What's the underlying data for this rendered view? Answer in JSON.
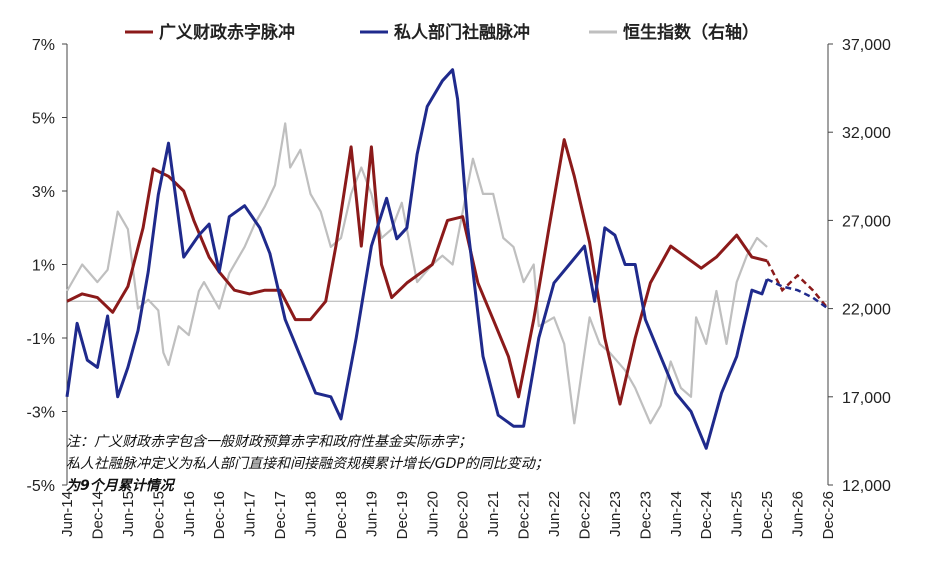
{
  "chart_data": {
    "type": "line",
    "title": "",
    "legend_position": "top",
    "grid": false,
    "y_left": {
      "ylim": [
        -5,
        7
      ],
      "ticks": [
        "7%",
        "5%",
        "3%",
        "1%",
        "-1%",
        "-3%",
        "-5%"
      ]
    },
    "y_right": {
      "ylim": [
        12000,
        37000
      ],
      "ticks": [
        "37,000",
        "32,000",
        "27,000",
        "22,000",
        "17,000",
        "12,000"
      ]
    },
    "x_ticks": [
      "Jun-14",
      "Dec-14",
      "Jun-15",
      "Dec-15",
      "Jun-16",
      "Dec-16",
      "Jun-17",
      "Dec-17",
      "Jun-18",
      "Dec-18",
      "Jun-19",
      "Dec-19",
      "Jun-20",
      "Dec-20",
      "Jun-21",
      "Dec-21",
      "Jun-22",
      "Dec-22",
      "Jun-23",
      "Dec-23",
      "Jun-24",
      "Dec-24",
      "Jun-25",
      "Dec-25",
      "Jun-26",
      "Dec-26"
    ],
    "series": [
      {
        "name": "广义财政赤字脉冲",
        "axis": "left",
        "color": "#8B1A1A",
        "forecast_from": "Dec-25",
        "points": [
          [
            "Jun-14",
            0.0
          ],
          [
            "Sep-14",
            0.2
          ],
          [
            "Dec-14",
            0.1
          ],
          [
            "Mar-15",
            -0.3
          ],
          [
            "Jun-15",
            0.4
          ],
          [
            "Sep-15",
            2.0
          ],
          [
            "Nov-15",
            3.6
          ],
          [
            "Feb-16",
            3.4
          ],
          [
            "May-16",
            3.0
          ],
          [
            "Jul-16",
            2.2
          ],
          [
            "Oct-16",
            1.2
          ],
          [
            "Dec-16",
            0.8
          ],
          [
            "Mar-17",
            0.3
          ],
          [
            "Jun-17",
            0.2
          ],
          [
            "Sep-17",
            0.3
          ],
          [
            "Dec-17",
            0.3
          ],
          [
            "Mar-18",
            -0.5
          ],
          [
            "Jun-18",
            -0.5
          ],
          [
            "Sep-18",
            0.0
          ],
          [
            "Nov-18",
            1.5
          ],
          [
            "Feb-19",
            4.2
          ],
          [
            "Apr-19",
            1.5
          ],
          [
            "Jun-19",
            4.2
          ],
          [
            "Aug-19",
            1.0
          ],
          [
            "Oct-19",
            0.1
          ],
          [
            "Jan-20",
            0.5
          ],
          [
            "Jun-20",
            1.0
          ],
          [
            "Sep-20",
            2.2
          ],
          [
            "Dec-20",
            2.3
          ],
          [
            "Mar-21",
            0.5
          ],
          [
            "Jun-21",
            -0.5
          ],
          [
            "Sep-21",
            -1.5
          ],
          [
            "Nov-21",
            -2.6
          ],
          [
            "Feb-22",
            -0.5
          ],
          [
            "May-22",
            2.0
          ],
          [
            "Aug-22",
            4.4
          ],
          [
            "Oct-22",
            3.4
          ],
          [
            "Jan-23",
            1.6
          ],
          [
            "Apr-23",
            -1.0
          ],
          [
            "Jul-23",
            -2.8
          ],
          [
            "Oct-23",
            -1.0
          ],
          [
            "Jan-24",
            0.5
          ],
          [
            "May-24",
            1.5
          ],
          [
            "Aug-24",
            1.2
          ],
          [
            "Nov-24",
            0.9
          ],
          [
            "Feb-25",
            1.2
          ],
          [
            "Jun-25",
            1.8
          ],
          [
            "Sep-25",
            1.2
          ],
          [
            "Dec-25",
            1.1
          ],
          [
            "Mar-26",
            0.3
          ],
          [
            "Jun-26",
            0.7
          ],
          [
            "Sep-26",
            0.3
          ],
          [
            "Dec-26",
            -0.2
          ]
        ]
      },
      {
        "name": "私人部门社融脉冲",
        "axis": "left",
        "color": "#1F2A8C",
        "forecast_from": "Dec-25",
        "points": [
          [
            "Jun-14",
            -2.6
          ],
          [
            "Aug-14",
            -0.6
          ],
          [
            "Oct-14",
            -1.6
          ],
          [
            "Dec-14",
            -1.8
          ],
          [
            "Feb-15",
            -0.4
          ],
          [
            "Apr-15",
            -2.6
          ],
          [
            "Jun-15",
            -1.8
          ],
          [
            "Aug-15",
            -0.8
          ],
          [
            "Oct-15",
            0.8
          ],
          [
            "Dec-15",
            2.9
          ],
          [
            "Feb-16",
            4.3
          ],
          [
            "May-16",
            1.2
          ],
          [
            "Aug-16",
            1.8
          ],
          [
            "Oct-16",
            2.1
          ],
          [
            "Dec-16",
            0.8
          ],
          [
            "Feb-17",
            2.3
          ],
          [
            "May-17",
            2.6
          ],
          [
            "Aug-17",
            2.0
          ],
          [
            "Oct-17",
            1.3
          ],
          [
            "Jan-18",
            -0.5
          ],
          [
            "Apr-18",
            -1.5
          ],
          [
            "Jul-18",
            -2.5
          ],
          [
            "Oct-18",
            -2.6
          ],
          [
            "Dec-18",
            -3.2
          ],
          [
            "Mar-19",
            -1.0
          ],
          [
            "Jun-19",
            1.5
          ],
          [
            "Sep-19",
            2.8
          ],
          [
            "Nov-19",
            1.7
          ],
          [
            "Jan-20",
            2.0
          ],
          [
            "Mar-20",
            4.0
          ],
          [
            "May-20",
            5.3
          ],
          [
            "Aug-20",
            6.0
          ],
          [
            "Oct-20",
            6.3
          ],
          [
            "Nov-20",
            5.5
          ],
          [
            "Jan-21",
            2.0
          ],
          [
            "Apr-21",
            -1.5
          ],
          [
            "Jul-21",
            -3.1
          ],
          [
            "Oct-21",
            -3.4
          ],
          [
            "Dec-21",
            -3.4
          ],
          [
            "Mar-22",
            -1.0
          ],
          [
            "Jun-22",
            0.5
          ],
          [
            "Sep-22",
            1.0
          ],
          [
            "Dec-22",
            1.5
          ],
          [
            "Feb-23",
            0.0
          ],
          [
            "Apr-23",
            2.0
          ],
          [
            "Jun-23",
            1.8
          ],
          [
            "Aug-23",
            1.0
          ],
          [
            "Oct-23",
            1.0
          ],
          [
            "Dec-23",
            -0.5
          ],
          [
            "Mar-24",
            -1.5
          ],
          [
            "Jun-24",
            -2.5
          ],
          [
            "Sep-24",
            -3.0
          ],
          [
            "Dec-24",
            -4.0
          ],
          [
            "Mar-25",
            -2.5
          ],
          [
            "Jun-25",
            -1.5
          ],
          [
            "Sep-25",
            0.3
          ],
          [
            "Nov-25",
            0.2
          ],
          [
            "Dec-25",
            0.6
          ],
          [
            "Mar-26",
            0.4
          ],
          [
            "Jun-26",
            0.3
          ],
          [
            "Sep-26",
            0.1
          ],
          [
            "Dec-26",
            -0.2
          ]
        ]
      },
      {
        "name": "恒生指数（右轴）",
        "axis": "right",
        "color": "#BFBFBF",
        "points": [
          [
            "Jun-14",
            23000
          ],
          [
            "Sep-14",
            24500
          ],
          [
            "Dec-14",
            23500
          ],
          [
            "Feb-15",
            24200
          ],
          [
            "Apr-15",
            27500
          ],
          [
            "Jun-15",
            26500
          ],
          [
            "Aug-15",
            22000
          ],
          [
            "Oct-15",
            22500
          ],
          [
            "Dec-15",
            21900
          ],
          [
            "Jan-16",
            19500
          ],
          [
            "Feb-16",
            18800
          ],
          [
            "Apr-16",
            21000
          ],
          [
            "Jun-16",
            20500
          ],
          [
            "Aug-16",
            23000
          ],
          [
            "Sep-16",
            23500
          ],
          [
            "Dec-16",
            22000
          ],
          [
            "Feb-17",
            24000
          ],
          [
            "May-17",
            25500
          ],
          [
            "Jul-17",
            26800
          ],
          [
            "Sep-17",
            27800
          ],
          [
            "Nov-17",
            29000
          ],
          [
            "Jan-18",
            32500
          ],
          [
            "Feb-18",
            30000
          ],
          [
            "Apr-18",
            31000
          ],
          [
            "Jun-18",
            28500
          ],
          [
            "Aug-18",
            27500
          ],
          [
            "Oct-18",
            25500
          ],
          [
            "Dec-18",
            26000
          ],
          [
            "Feb-19",
            28500
          ],
          [
            "Apr-19",
            30000
          ],
          [
            "Jun-19",
            28500
          ],
          [
            "Aug-19",
            26000
          ],
          [
            "Oct-19",
            26500
          ],
          [
            "Dec-19",
            28000
          ],
          [
            "Mar-20",
            23500
          ],
          [
            "Jun-20",
            24500
          ],
          [
            "Aug-20",
            25000
          ],
          [
            "Oct-20",
            24500
          ],
          [
            "Jan-21",
            29000
          ],
          [
            "Feb-21",
            30500
          ],
          [
            "Apr-21",
            28500
          ],
          [
            "Jun-21",
            28500
          ],
          [
            "Aug-21",
            26000
          ],
          [
            "Oct-21",
            25500
          ],
          [
            "Dec-21",
            23500
          ],
          [
            "Feb-22",
            24500
          ],
          [
            "Mar-22",
            21000
          ],
          [
            "Jun-22",
            21500
          ],
          [
            "Aug-22",
            20000
          ],
          [
            "Oct-22",
            15500
          ],
          [
            "Jan-23",
            21500
          ],
          [
            "Mar-23",
            20000
          ],
          [
            "May-23",
            19500
          ],
          [
            "Aug-23",
            18500
          ],
          [
            "Oct-23",
            17500
          ],
          [
            "Jan-24",
            15500
          ],
          [
            "Mar-24",
            16500
          ],
          [
            "May-24",
            19000
          ],
          [
            "Jul-24",
            17500
          ],
          [
            "Sep-24",
            17000
          ],
          [
            "Oct-24",
            21500
          ],
          [
            "Dec-24",
            20000
          ],
          [
            "Feb-25",
            23000
          ],
          [
            "Apr-25",
            20000
          ],
          [
            "Jun-25",
            23500
          ],
          [
            "Aug-25",
            25000
          ],
          [
            "Oct-25",
            26000
          ],
          [
            "Dec-25",
            25500
          ]
        ]
      }
    ]
  },
  "notes": {
    "line1": "注：广义财政赤字包含一般财政预算赤字和政府性基金实际赤字；",
    "line2": "私人社融脉冲定义为私人部门直接和间接融资规模累计增长/GDP的同比变动；",
    "line3": "为9个月累计情况"
  }
}
